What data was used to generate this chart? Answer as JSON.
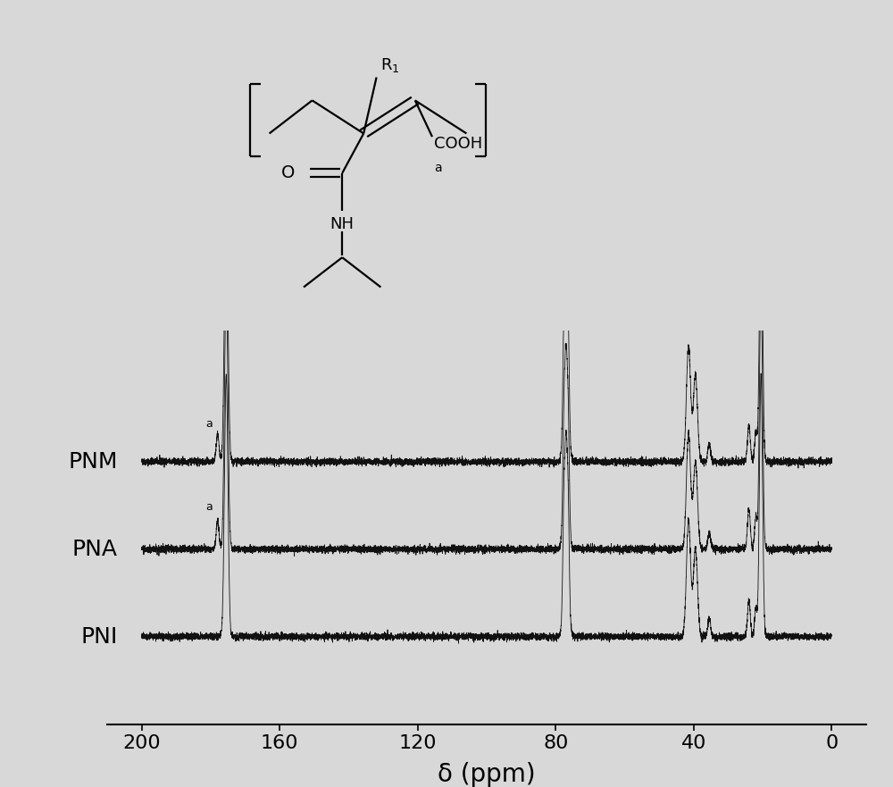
{
  "background_color": "#d8d8d8",
  "xlim_left": 210,
  "xlim_right": -10,
  "xlabel": "δ (ppm)",
  "xlabel_fontsize": 20,
  "tick_fontsize": 16,
  "label_fontsize": 18,
  "spectra_labels": [
    "PNM",
    "PNA",
    "PNI"
  ],
  "spectra_offsets": [
    0.6,
    0.0,
    -0.6
  ],
  "noise_level": 0.012,
  "line_color": "#111111",
  "xticks": [
    200,
    160,
    120,
    80,
    40,
    0
  ]
}
